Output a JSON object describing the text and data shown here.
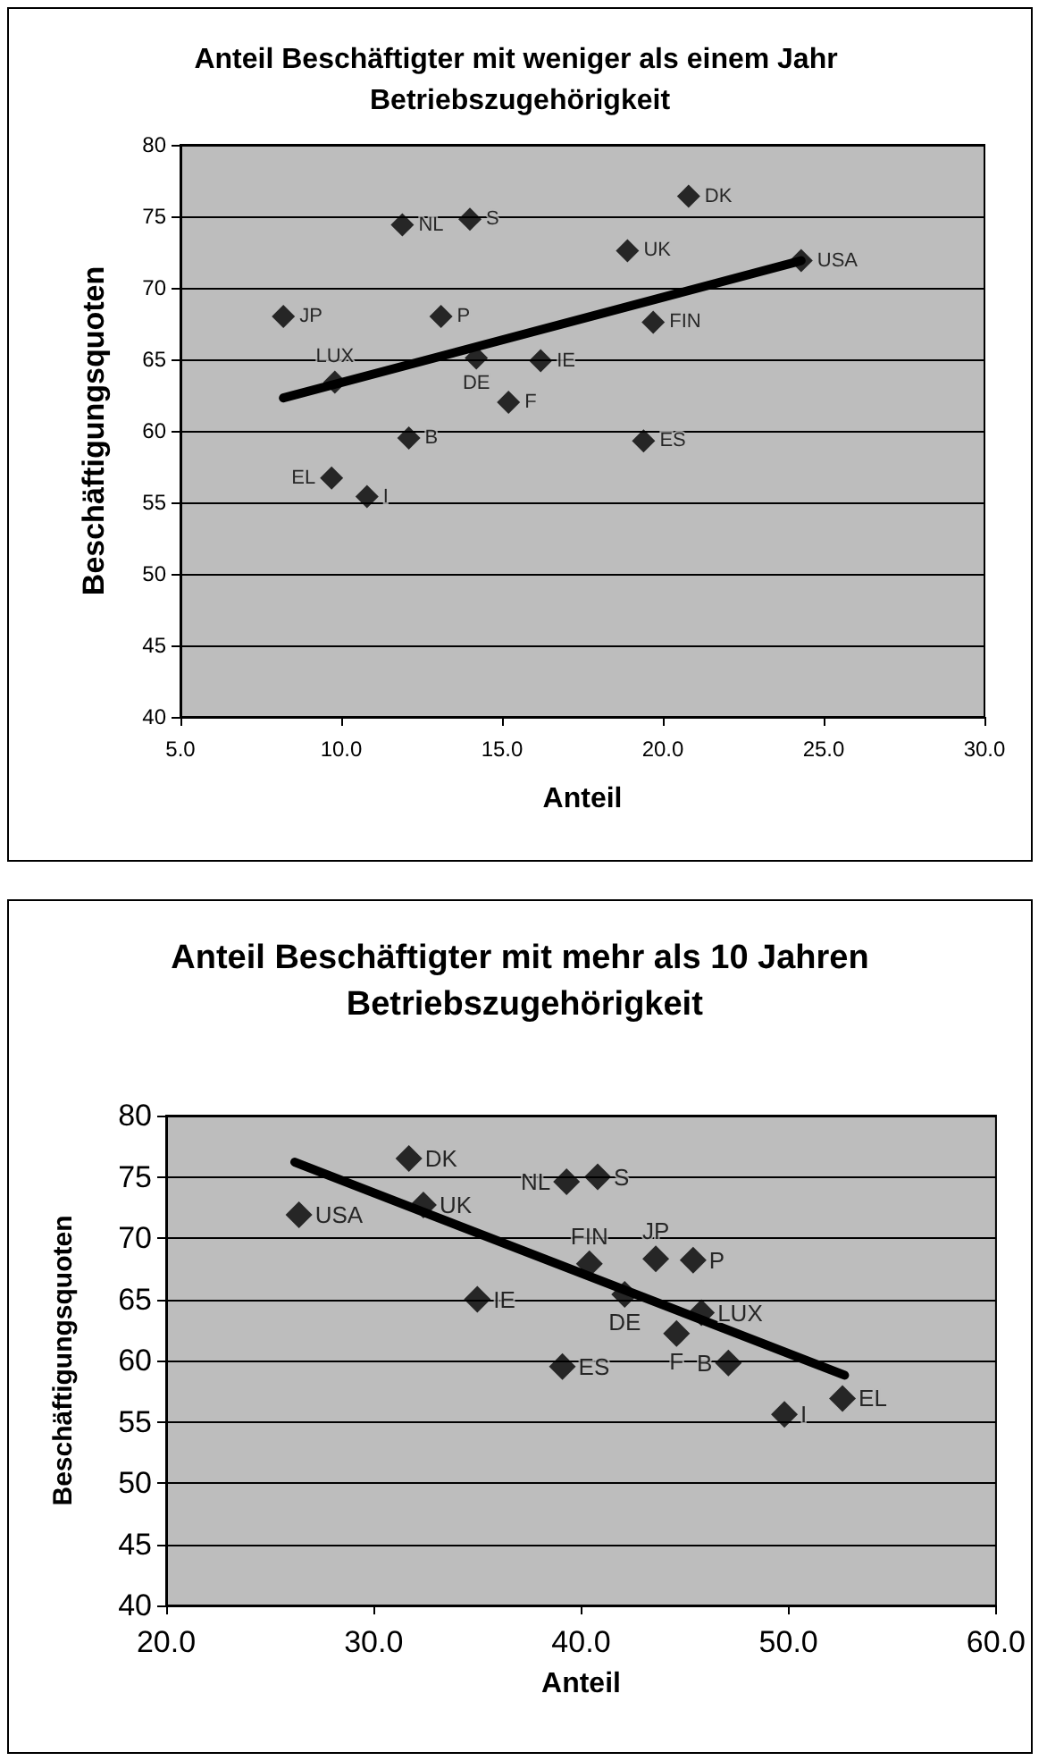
{
  "chart_data": [
    {
      "type": "scatter",
      "title": "Anteil Beschäftigter mit weniger als einem Jahr Betriebszugehörigkeit",
      "xlabel": "Anteil",
      "ylabel": "Beschäftigungsquoten",
      "xlim": [
        5,
        30
      ],
      "xticks": [
        {
          "value": 5,
          "label": "5.0"
        },
        {
          "value": 10,
          "label": "10.0"
        },
        {
          "value": 15,
          "label": "15.0"
        },
        {
          "value": 20,
          "label": "20.0"
        },
        {
          "value": 25,
          "label": "25.0"
        },
        {
          "value": 30,
          "label": "30.0"
        }
      ],
      "ylim": [
        40,
        80
      ],
      "yticks": [
        40,
        45,
        50,
        55,
        60,
        65,
        70,
        75,
        80
      ],
      "grid": "y",
      "series": [
        {
          "marker": "diamond",
          "color": "#000000",
          "x": [
            20.8,
            11.9,
            14.0,
            18.9,
            24.3,
            8.2,
            13.1,
            19.7,
            14.2,
            16.2,
            9.8,
            15.2,
            12.1,
            19.4,
            9.7,
            10.8
          ],
          "values": [
            76.4,
            74.4,
            74.8,
            72.6,
            71.9,
            68.0,
            68.0,
            67.6,
            65.1,
            64.9,
            63.4,
            62.0,
            59.5,
            59.3,
            56.7,
            55.4
          ]
        },
        {
          "type": "line",
          "color": "#000000",
          "x": [
            8.2,
            24.3
          ],
          "values": [
            62.3,
            71.9
          ]
        }
      ],
      "annotations": [
        {
          "text": "DK",
          "x": 20.8,
          "y": 76.4
        },
        {
          "text": "NL",
          "x": 11.9,
          "y": 74.4
        },
        {
          "text": "S",
          "x": 14.0,
          "y": 74.8
        },
        {
          "text": "UK",
          "x": 18.9,
          "y": 72.6
        },
        {
          "text": "USA",
          "x": 24.3,
          "y": 71.9
        },
        {
          "text": "JP",
          "x": 8.2,
          "y": 68.0
        },
        {
          "text": "P",
          "x": 13.1,
          "y": 68.0
        },
        {
          "text": "FIN",
          "x": 19.7,
          "y": 67.6
        },
        {
          "text": "DE",
          "x": 14.2,
          "y": 65.1
        },
        {
          "text": "IE",
          "x": 16.2,
          "y": 64.9
        },
        {
          "text": "LUX",
          "x": 9.8,
          "y": 63.4
        },
        {
          "text": "F",
          "x": 15.2,
          "y": 62.0
        },
        {
          "text": "B",
          "x": 12.1,
          "y": 59.5
        },
        {
          "text": "ES",
          "x": 19.4,
          "y": 59.3
        },
        {
          "text": "EL",
          "x": 9.7,
          "y": 56.7
        },
        {
          "text": "I",
          "x": 10.8,
          "y": 55.4
        }
      ]
    },
    {
      "type": "scatter",
      "title": "Anteil Beschäftigter mit mehr als 10 Jahren Betriebszugehörigkeit",
      "xlabel": "Anteil",
      "ylabel": "Beschäftigungsquoten",
      "xlim": [
        20,
        60
      ],
      "xticks": [
        {
          "value": 20,
          "label": "20.0"
        },
        {
          "value": 30,
          "label": "30.0"
        },
        {
          "value": 40,
          "label": "40.0"
        },
        {
          "value": 50,
          "label": "50.0"
        },
        {
          "value": 60,
          "label": "60.0"
        }
      ],
      "ylim": [
        40,
        80
      ],
      "yticks": [
        40,
        45,
        50,
        55,
        60,
        65,
        70,
        75,
        80
      ],
      "grid": "y",
      "series": [
        {
          "marker": "diamond",
          "color": "#000000",
          "x": [
            26.4,
            31.7,
            32.4,
            35.0,
            39.3,
            40.8,
            39.1,
            40.4,
            42.1,
            43.6,
            45.4,
            45.8,
            44.6,
            47.1,
            49.8,
            52.6
          ],
          "values": [
            71.9,
            76.5,
            72.7,
            65.0,
            74.6,
            75.0,
            59.5,
            67.9,
            65.4,
            68.3,
            68.2,
            63.9,
            62.2,
            59.8,
            55.6,
            56.9
          ]
        },
        {
          "type": "line",
          "color": "#000000",
          "x": [
            26.2,
            52.7
          ],
          "values": [
            76.2,
            58.8
          ]
        }
      ],
      "annotations": [
        {
          "text": "USA",
          "x": 26.4,
          "y": 71.9
        },
        {
          "text": "DK",
          "x": 31.7,
          "y": 76.5
        },
        {
          "text": "UK",
          "x": 32.4,
          "y": 72.7
        },
        {
          "text": "IE",
          "x": 35.0,
          "y": 65.0
        },
        {
          "text": "NL",
          "x": 39.3,
          "y": 74.6
        },
        {
          "text": "S",
          "x": 40.8,
          "y": 75.0
        },
        {
          "text": "ES",
          "x": 39.1,
          "y": 59.5
        },
        {
          "text": "FIN",
          "x": 40.4,
          "y": 67.9
        },
        {
          "text": "DE",
          "x": 42.1,
          "y": 65.4
        },
        {
          "text": "JP",
          "x": 43.6,
          "y": 68.3
        },
        {
          "text": "P",
          "x": 45.4,
          "y": 68.2
        },
        {
          "text": "LUX",
          "x": 45.8,
          "y": 63.9
        },
        {
          "text": "F",
          "x": 44.6,
          "y": 62.2
        },
        {
          "text": "B",
          "x": 47.1,
          "y": 59.8
        },
        {
          "text": "I",
          "x": 49.8,
          "y": 55.6
        },
        {
          "text": "EL",
          "x": 52.6,
          "y": 56.9
        }
      ]
    }
  ]
}
